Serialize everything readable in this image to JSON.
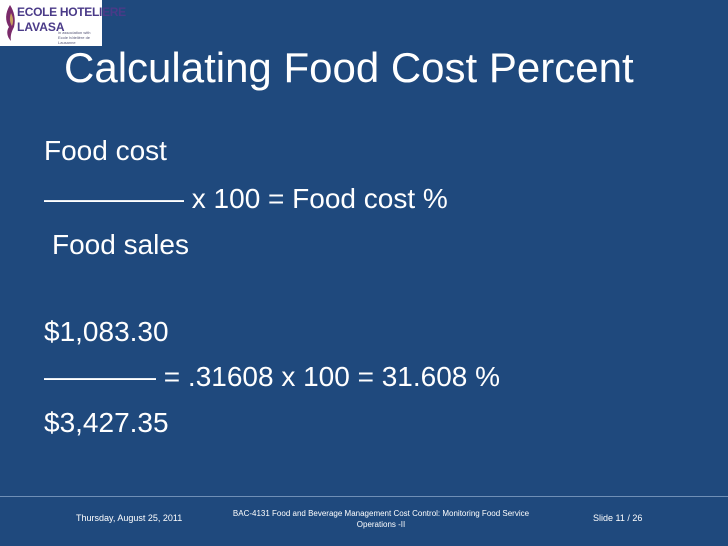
{
  "logo": {
    "line1": "ECOLE HOTELIERE",
    "line2": "LAVASA",
    "tagline": "in association with Ecole hôtelière de Lausanne"
  },
  "slide": {
    "title": "Calculating Food Cost Percent",
    "lines": [
      "Food cost",
      "————— x 100 = Food cost %",
      "Food sales",
      "$1,083.30",
      "————  = .31608 x 100 = 31.608 %",
      "$3,427.35"
    ]
  },
  "footer": {
    "date": "Thursday, August 25, 2011",
    "course": "BAC-4131 Food and Beverage Management Cost Control: Monitoring Food Service Operations -II",
    "slide_number": "Slide 11 / 26"
  },
  "colors": {
    "background": "#1f497d",
    "text": "#ffffff",
    "logo_text": "#4a3a88"
  }
}
